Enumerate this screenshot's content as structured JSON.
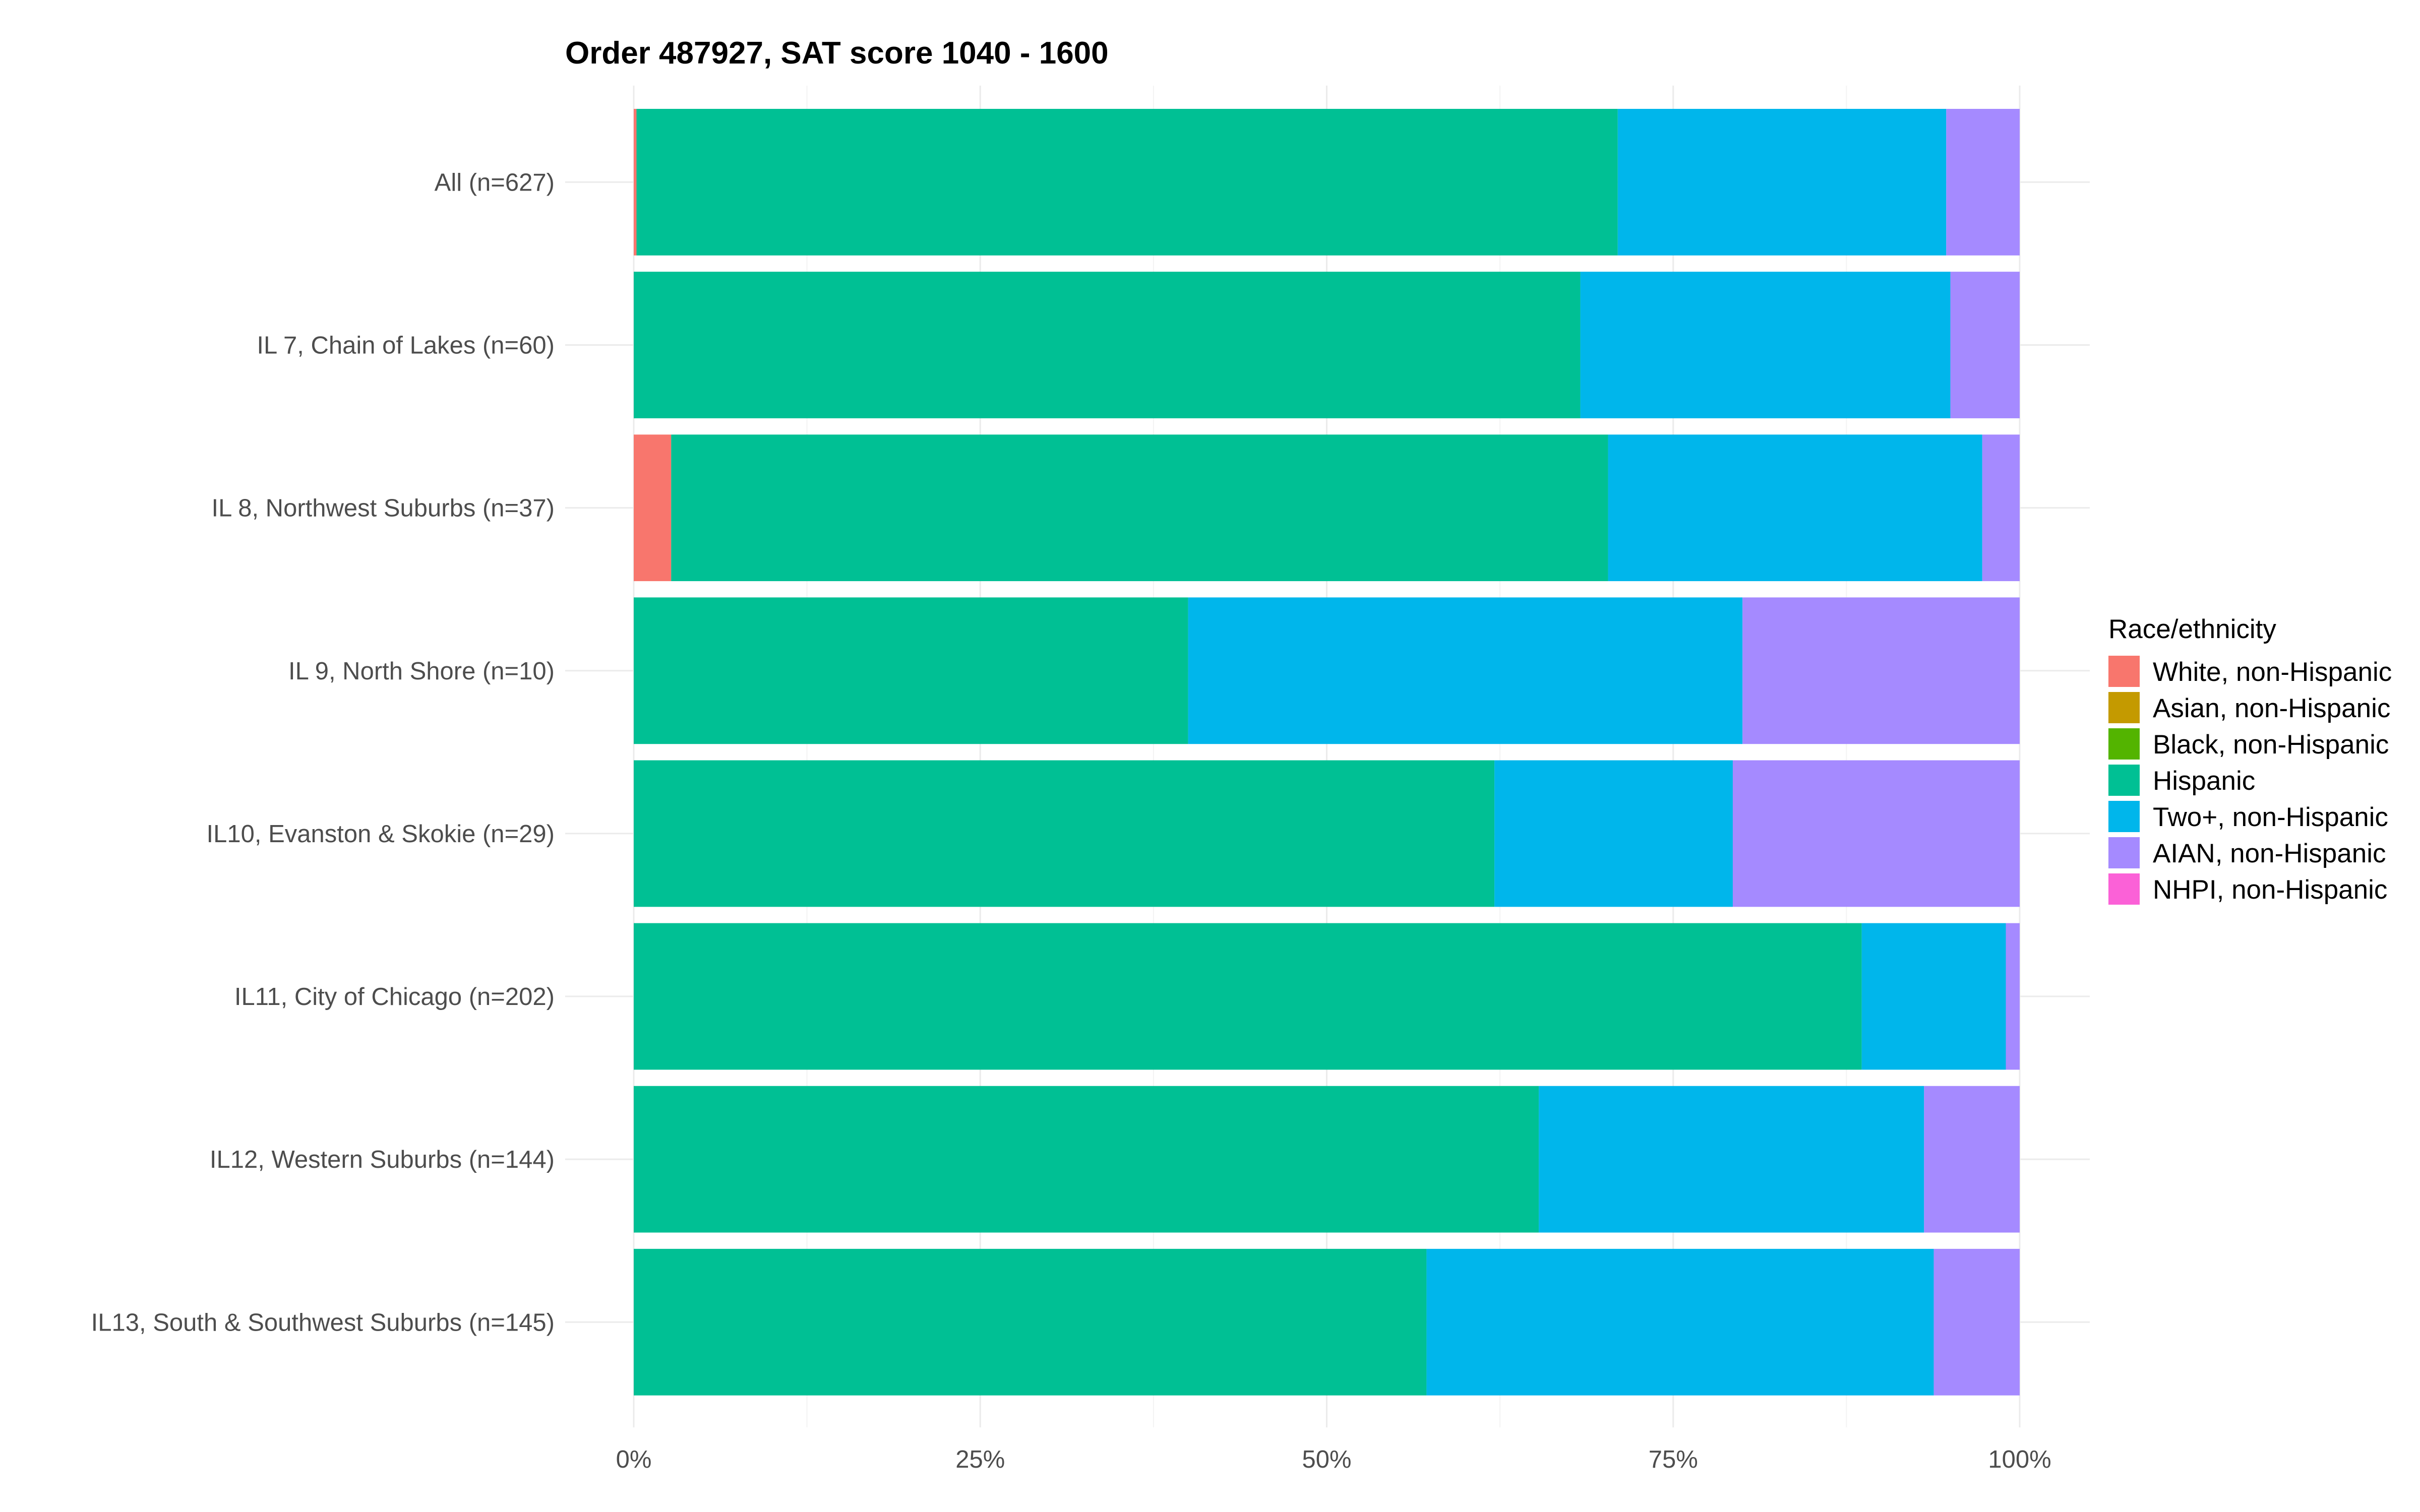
{
  "chart_data": {
    "type": "bar",
    "orientation": "horizontal",
    "stacked": true,
    "normalized": true,
    "title": "Order 487927, SAT score 1040 - 1600",
    "xlabel": "",
    "ylabel": "",
    "xlim": [
      0,
      1
    ],
    "x_ticks": [
      "0%",
      "25%",
      "50%",
      "75%",
      "100%"
    ],
    "grid": true,
    "legend_position": "right",
    "legend_title": "Race/ethnicity",
    "categories": [
      "All (n=627)",
      "IL 7, Chain of Lakes (n=60)",
      "IL 8, Northwest Suburbs (n=37)",
      "IL 9, North Shore (n=10)",
      "IL10, Evanston & Skokie (n=29)",
      "IL11, City of Chicago (n=202)",
      "IL12, Western Suburbs (n=144)",
      "IL13, South & Southwest Suburbs (n=145)"
    ],
    "series": [
      {
        "name": "White, non-Hispanic",
        "color": "#F8766D",
        "values": [
          0.002,
          0.0,
          0.027,
          0.0,
          0.0,
          0.0,
          0.0,
          0.0
        ]
      },
      {
        "name": "Asian, non-Hispanic",
        "color": "#C49A00",
        "values": [
          0,
          0,
          0,
          0,
          0,
          0,
          0,
          0
        ]
      },
      {
        "name": "Black, non-Hispanic",
        "color": "#53B400",
        "values": [
          0,
          0,
          0,
          0,
          0,
          0,
          0,
          0
        ]
      },
      {
        "name": "Hispanic",
        "color": "#00C094",
        "values": [
          0.708,
          0.683,
          0.676,
          0.4,
          0.621,
          0.886,
          0.653,
          0.572
        ]
      },
      {
        "name": "Two+, non-Hispanic",
        "color": "#00B6EB",
        "values": [
          0.237,
          0.267,
          0.27,
          0.4,
          0.172,
          0.104,
          0.278,
          0.366
        ]
      },
      {
        "name": "AIAN, non-Hispanic",
        "color": "#A58AFF",
        "values": [
          0.053,
          0.05,
          0.027,
          0.2,
          0.207,
          0.01,
          0.069,
          0.062
        ]
      },
      {
        "name": "NHPI, non-Hispanic",
        "color": "#FB61D7",
        "values": [
          0,
          0,
          0,
          0,
          0,
          0,
          0,
          0
        ]
      }
    ]
  }
}
